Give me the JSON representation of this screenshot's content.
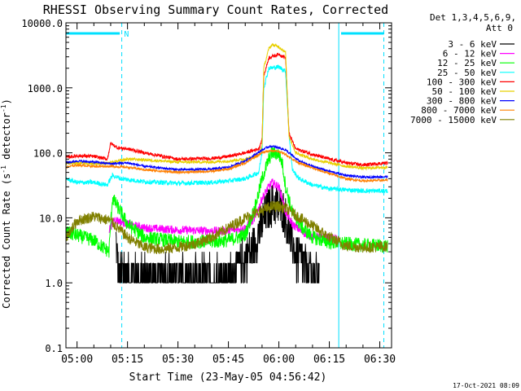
{
  "chart_data": {
    "type": "line",
    "title": "RHESSI Observing Summary Count Rates, Corrected",
    "xlabel": "Start Time (23-May-05 04:56:42)",
    "ylabel_main": "Corrected Count Rate (s",
    "ylabel_sup1": "-1",
    "ylabel_mid": " detector",
    "ylabel_sup2": "-1",
    "ylabel_end": ")",
    "footer_date": "17-Oct-2021 08:09",
    "legend_header": [
      "Det 1,3,4,5,6,9,",
      "Att 0"
    ],
    "y_scale": "log",
    "ylim": [
      0.1,
      10000
    ],
    "y_ticks": [
      {
        "v": 0.1,
        "label": "0.1"
      },
      {
        "v": 1,
        "label": "1.0"
      },
      {
        "v": 10,
        "label": "10.0"
      },
      {
        "v": 100,
        "label": "100.0"
      },
      {
        "v": 1000,
        "label": "1000.0"
      },
      {
        "v": 10000,
        "label": "10000.0"
      }
    ],
    "xlim_minutes": [
      296.7,
      393.5
    ],
    "x_ticks": [
      {
        "m": 300,
        "label": "05:00"
      },
      {
        "m": 315,
        "label": "05:15"
      },
      {
        "m": 330,
        "label": "05:30"
      },
      {
        "m": 345,
        "label": "05:45"
      },
      {
        "m": 360,
        "label": "06:00"
      },
      {
        "m": 375,
        "label": "06:15"
      },
      {
        "m": 390,
        "label": "06:30"
      }
    ],
    "night_marker": {
      "label": "N",
      "m": 313.5
    },
    "night_start_line": {
      "m": 313.3
    },
    "night_end_line": {
      "m": 391.2
    },
    "saa_start_line": {
      "m": 296.7
    },
    "saa_end_line": {
      "m": 377.8
    },
    "top_bars": [
      {
        "m0": 296.7,
        "m1": 312.7
      },
      {
        "m0": 378.5,
        "m1": 391.2
      }
    ],
    "series": [
      {
        "name": "3 - 6 keV",
        "color": "#000000",
        "noise": 0.8,
        "start": 311,
        "x": [
          311.5,
          312.5,
          313.5,
          316,
          320,
          330,
          340,
          343,
          347,
          350,
          352,
          355,
          357,
          358,
          361,
          362,
          363,
          364,
          365,
          367,
          370,
          372
        ],
        "y": [
          5,
          1.2,
          1.3,
          1.3,
          1.1,
          1.0,
          1.0,
          1.0,
          1.3,
          2.5,
          3.0,
          8.0,
          14,
          16,
          14,
          10,
          6,
          4,
          2.5,
          2.0,
          1.2,
          1.0
        ]
      },
      {
        "name": "6 - 12 keV",
        "color": "#ff00ff",
        "noise": 0.15,
        "start": 309,
        "x": [
          309.5,
          311,
          315,
          320,
          330,
          340,
          345,
          350,
          353,
          355,
          357,
          358,
          360,
          361,
          362,
          364,
          367,
          370,
          373,
          376,
          378
        ],
        "y": [
          6.5,
          9.5,
          8.0,
          7.0,
          6.5,
          6.3,
          6.3,
          7.0,
          10,
          20,
          30,
          35,
          30,
          20,
          12,
          8,
          6,
          5.2,
          5.0,
          4.8,
          4.6
        ]
      },
      {
        "name": "12 - 25 keV",
        "color": "#00ff00",
        "noise": 0.25,
        "start": 296.7,
        "x": [
          296.7,
          305,
          309.5,
          310.5,
          312,
          315,
          320,
          330,
          340,
          345,
          350,
          353,
          355,
          357,
          358,
          360,
          361,
          362,
          364,
          367,
          370,
          375,
          380,
          385,
          392.3
        ],
        "y": [
          6.0,
          4.5,
          3.0,
          20,
          15,
          8.0,
          5.0,
          4.3,
          4.3,
          4.5,
          5.5,
          15,
          40,
          80,
          100,
          95,
          70,
          30,
          12,
          7,
          5,
          4.2,
          4.0,
          3.8,
          3.7
        ]
      },
      {
        "name": "25 - 50 keV",
        "color": "#00ffff",
        "noise": 0.08,
        "start": 296.7,
        "x": [
          296.7,
          300,
          305,
          309,
          310.5,
          313,
          320,
          330,
          340,
          345,
          350,
          354,
          355,
          355.5,
          357,
          360,
          362,
          363,
          364,
          366,
          370,
          375,
          380,
          385,
          392.3
        ],
        "y": [
          40,
          35,
          35,
          32,
          45,
          40,
          36,
          34,
          35,
          37,
          40,
          50,
          100,
          1000,
          2000,
          2100,
          1800,
          200,
          55,
          40,
          32,
          28,
          27,
          26,
          26
        ]
      },
      {
        "name": "100 - 300 keV",
        "color": "#ff0000",
        "noise": 0.06,
        "start": 296.7,
        "x": [
          296.7,
          300,
          305,
          309,
          310,
          312,
          315,
          320,
          330,
          340,
          345,
          350,
          354,
          355,
          355.5,
          357,
          360,
          362,
          363,
          365,
          370,
          375,
          380,
          385,
          392.3
        ],
        "y": [
          85,
          90,
          88,
          80,
          140,
          120,
          115,
          100,
          80,
          82,
          88,
          100,
          115,
          160,
          1500,
          2900,
          3300,
          2900,
          200,
          115,
          95,
          80,
          70,
          65,
          70
        ]
      },
      {
        "name": "50 - 100 keV",
        "color": "#e8d000",
        "noise": 0.05,
        "start": 296.7,
        "x": [
          296.7,
          300,
          305,
          310,
          315,
          320,
          330,
          340,
          345,
          350,
          354,
          355,
          355.5,
          357,
          358,
          360,
          362,
          363,
          365,
          370,
          375,
          380,
          385,
          392.3
        ],
        "y": [
          70,
          70,
          68,
          70,
          80,
          78,
          72,
          72,
          75,
          80,
          90,
          130,
          2000,
          4000,
          4600,
          4300,
          3500,
          180,
          100,
          80,
          70,
          62,
          58,
          60
        ]
      },
      {
        "name": "300 - 800 keV",
        "color": "#0000ff",
        "noise": 0.04,
        "start": 296.7,
        "x": [
          296.7,
          300,
          305,
          310,
          315,
          320,
          330,
          340,
          345,
          350,
          355,
          357,
          358,
          360,
          362,
          364,
          366,
          370,
          375,
          380,
          385,
          392.3
        ],
        "y": [
          70,
          75,
          72,
          68,
          70,
          62,
          55,
          56,
          60,
          75,
          110,
          125,
          125,
          120,
          110,
          90,
          75,
          62,
          52,
          45,
          42,
          43
        ]
      },
      {
        "name": "800 - 7000 keV",
        "color": "#ff8000",
        "noise": 0.04,
        "start": 296.7,
        "x": [
          296.7,
          300,
          305,
          310,
          315,
          320,
          330,
          340,
          345,
          350,
          355,
          357,
          358,
          360,
          362,
          364,
          366,
          370,
          375,
          380,
          385,
          392.3
        ],
        "y": [
          60,
          65,
          62,
          62,
          60,
          55,
          50,
          52,
          56,
          70,
          100,
          108,
          108,
          105,
          95,
          80,
          70,
          58,
          48,
          40,
          37,
          38
        ]
      },
      {
        "name": "7000 - 15000 keV",
        "color": "#808000",
        "noise": 0.2,
        "start": 296.7,
        "x": [
          296.7,
          300,
          305,
          310,
          315,
          320,
          325,
          330,
          335,
          340,
          345,
          350,
          355,
          358,
          360,
          362,
          365,
          370,
          375,
          380,
          385,
          390,
          392.3
        ],
        "y": [
          5.0,
          9.0,
          10.5,
          9.0,
          5.0,
          3.5,
          3.3,
          3.5,
          4.0,
          5.0,
          7.0,
          10,
          13,
          15,
          15,
          14,
          11,
          7.5,
          5.0,
          3.7,
          3.5,
          3.6,
          3.6
        ]
      }
    ]
  }
}
